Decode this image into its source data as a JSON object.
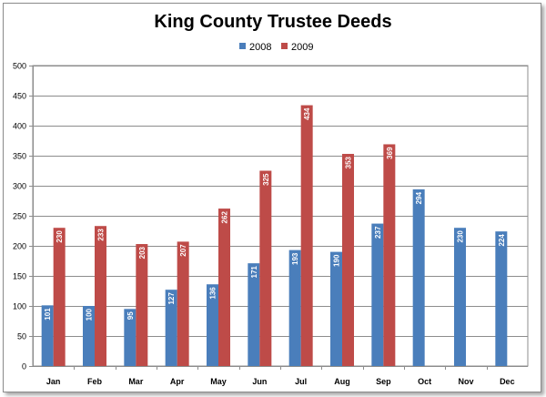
{
  "chart_data": {
    "type": "bar",
    "title": "King County Trustee Deeds",
    "xlabel": "",
    "ylabel": "",
    "categories": [
      "Jan",
      "Feb",
      "Mar",
      "Apr",
      "May",
      "Jun",
      "Jul",
      "Aug",
      "Sep",
      "Oct",
      "Nov",
      "Dec"
    ],
    "series": [
      {
        "name": "2008",
        "color": "#4a7ebb",
        "values": [
          101,
          100,
          95,
          127,
          136,
          171,
          193,
          190,
          237,
          294,
          230,
          224
        ]
      },
      {
        "name": "2009",
        "color": "#be4b48",
        "values": [
          230,
          233,
          203,
          207,
          262,
          325,
          434,
          353,
          369,
          null,
          null,
          null
        ]
      }
    ],
    "ylim": [
      0,
      500
    ],
    "yticks": [
      0,
      50,
      100,
      150,
      200,
      250,
      300,
      350,
      400,
      450,
      500
    ],
    "grid": true,
    "legend_position": "top-center",
    "data_labels": true
  }
}
